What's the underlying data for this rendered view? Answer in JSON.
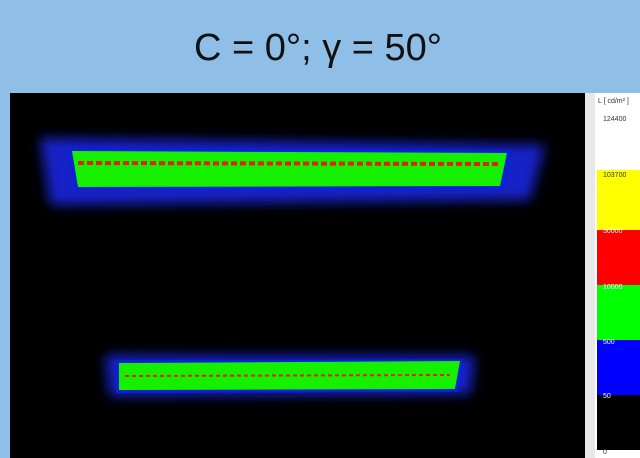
{
  "header": {
    "title": "C = 0°; γ = 50°"
  },
  "legend": {
    "title": "L [ cd/m² ]",
    "levels": [
      "124400",
      "103700",
      "50000",
      "10000",
      "500",
      "50",
      "0"
    ]
  }
}
